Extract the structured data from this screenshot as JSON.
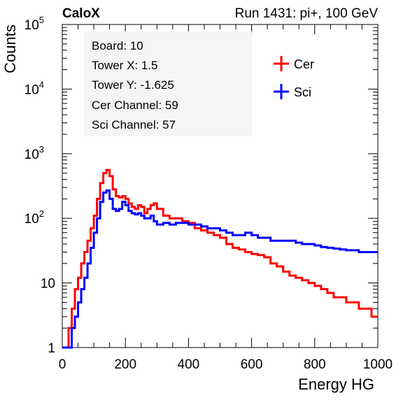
{
  "header": {
    "brand": "CaloX",
    "run_info": "Run 1431: pi+, 100 GeV"
  },
  "info_box": {
    "lines": [
      "Board: 10",
      "Tower X: 1.5",
      "Tower Y: -1.625",
      "Cer Channel: 59",
      "Sci Channel: 57"
    ]
  },
  "colors": {
    "cer": "#ff0000",
    "sci": "#0000ff"
  },
  "chart_data": {
    "type": "line",
    "xlabel": "Energy HG",
    "ylabel": "Counts",
    "xlim": [
      0,
      1000
    ],
    "ylim": [
      1,
      100000
    ],
    "yscale": "log",
    "grid": false,
    "legend_position": "top-right",
    "x_ticks": [
      "0",
      "200",
      "400",
      "600",
      "800",
      "1000"
    ],
    "y_ticks": [
      {
        "base": "1",
        "exp": ""
      },
      {
        "base": "10",
        "exp": ""
      },
      {
        "base": "10",
        "exp": "2"
      },
      {
        "base": "10",
        "exp": "3"
      },
      {
        "base": "10",
        "exp": "4"
      },
      {
        "base": "10",
        "exp": "5"
      }
    ],
    "series": [
      {
        "name": "Cer",
        "color": "#ff0000",
        "x": [
          10,
          20,
          30,
          40,
          50,
          60,
          70,
          80,
          90,
          100,
          110,
          120,
          130,
          140,
          150,
          160,
          170,
          180,
          190,
          200,
          210,
          220,
          230,
          240,
          250,
          260,
          270,
          280,
          290,
          300,
          320,
          340,
          360,
          380,
          400,
          420,
          440,
          460,
          480,
          500,
          520,
          540,
          560,
          580,
          600,
          620,
          640,
          660,
          680,
          700,
          720,
          740,
          760,
          780,
          800,
          820,
          840,
          860,
          880,
          900,
          920,
          940,
          960,
          980,
          1000
        ],
        "y": [
          1,
          1,
          2,
          4,
          8,
          12,
          20,
          30,
          45,
          70,
          110,
          200,
          350,
          500,
          560,
          450,
          280,
          220,
          210,
          220,
          200,
          170,
          150,
          140,
          160,
          150,
          120,
          140,
          160,
          170,
          140,
          110,
          100,
          100,
          90,
          85,
          70,
          65,
          60,
          55,
          50,
          40,
          35,
          33,
          30,
          28,
          27,
          25,
          20,
          18,
          15,
          13,
          12,
          11,
          10,
          9,
          8,
          7,
          6,
          6,
          5,
          5,
          4,
          4,
          3
        ]
      },
      {
        "name": "Sci",
        "color": "#0000ff",
        "x": [
          10,
          20,
          30,
          40,
          50,
          60,
          70,
          80,
          90,
          100,
          110,
          120,
          130,
          140,
          150,
          160,
          170,
          180,
          190,
          200,
          210,
          220,
          230,
          240,
          250,
          260,
          270,
          280,
          290,
          300,
          320,
          340,
          360,
          380,
          400,
          420,
          440,
          460,
          480,
          500,
          520,
          540,
          560,
          580,
          600,
          620,
          640,
          660,
          680,
          700,
          720,
          740,
          760,
          780,
          800,
          820,
          840,
          860,
          880,
          900,
          920,
          940,
          960,
          980,
          1000
        ],
        "y": [
          1,
          1,
          1,
          2,
          3,
          5,
          8,
          12,
          20,
          35,
          60,
          100,
          180,
          250,
          270,
          200,
          140,
          130,
          140,
          180,
          160,
          130,
          120,
          115,
          120,
          110,
          100,
          100,
          110,
          90,
          80,
          85,
          80,
          85,
          85,
          80,
          80,
          75,
          70,
          70,
          65,
          60,
          55,
          55,
          60,
          55,
          50,
          50,
          45,
          45,
          45,
          45,
          42,
          40,
          40,
          38,
          36,
          35,
          34,
          33,
          32,
          32,
          30,
          30,
          30
        ]
      }
    ]
  }
}
